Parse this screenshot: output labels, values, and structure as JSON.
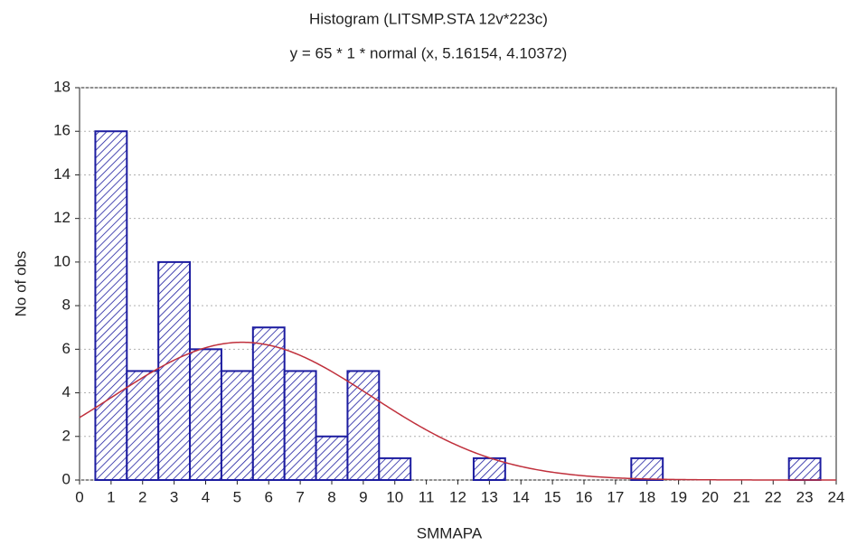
{
  "chart_data": {
    "type": "histogram",
    "title": "Histogram (LITSMP.STA 12v*223c)",
    "subtitle": "y = 65 * 1 * normal (x, 5.16154, 4.10372)",
    "xlabel": "SMMAPA",
    "ylabel": "No of obs",
    "bins": [
      0.5,
      1.5,
      2.5,
      3.5,
      4.5,
      5.5,
      6.5,
      7.5,
      8.5,
      9.5,
      10.5,
      11.5,
      12.5,
      13.5,
      14.5,
      15.5,
      16.5,
      17.5,
      18.5,
      19.5,
      20.5,
      21.5,
      22.5,
      23.5
    ],
    "values": [
      16,
      5,
      10,
      6,
      5,
      7,
      5,
      2,
      5,
      1,
      0,
      0,
      1,
      0,
      0,
      0,
      0,
      1,
      0,
      0,
      0,
      0,
      1
    ],
    "color": "#1c1ca0",
    "fit": {
      "n": 65,
      "bin_width": 1,
      "mean": 5.16154,
      "sd": 4.10372,
      "color": "#c0303c"
    },
    "xlim": [
      0,
      24
    ],
    "xticks": [
      0,
      1,
      2,
      3,
      4,
      5,
      6,
      7,
      8,
      9,
      10,
      11,
      12,
      13,
      14,
      15,
      16,
      17,
      18,
      19,
      20,
      21,
      22,
      23,
      24
    ],
    "ylim": [
      0,
      18
    ],
    "yticks": [
      0,
      2,
      4,
      6,
      8,
      10,
      12,
      14,
      16,
      18
    ],
    "grid": true
  }
}
